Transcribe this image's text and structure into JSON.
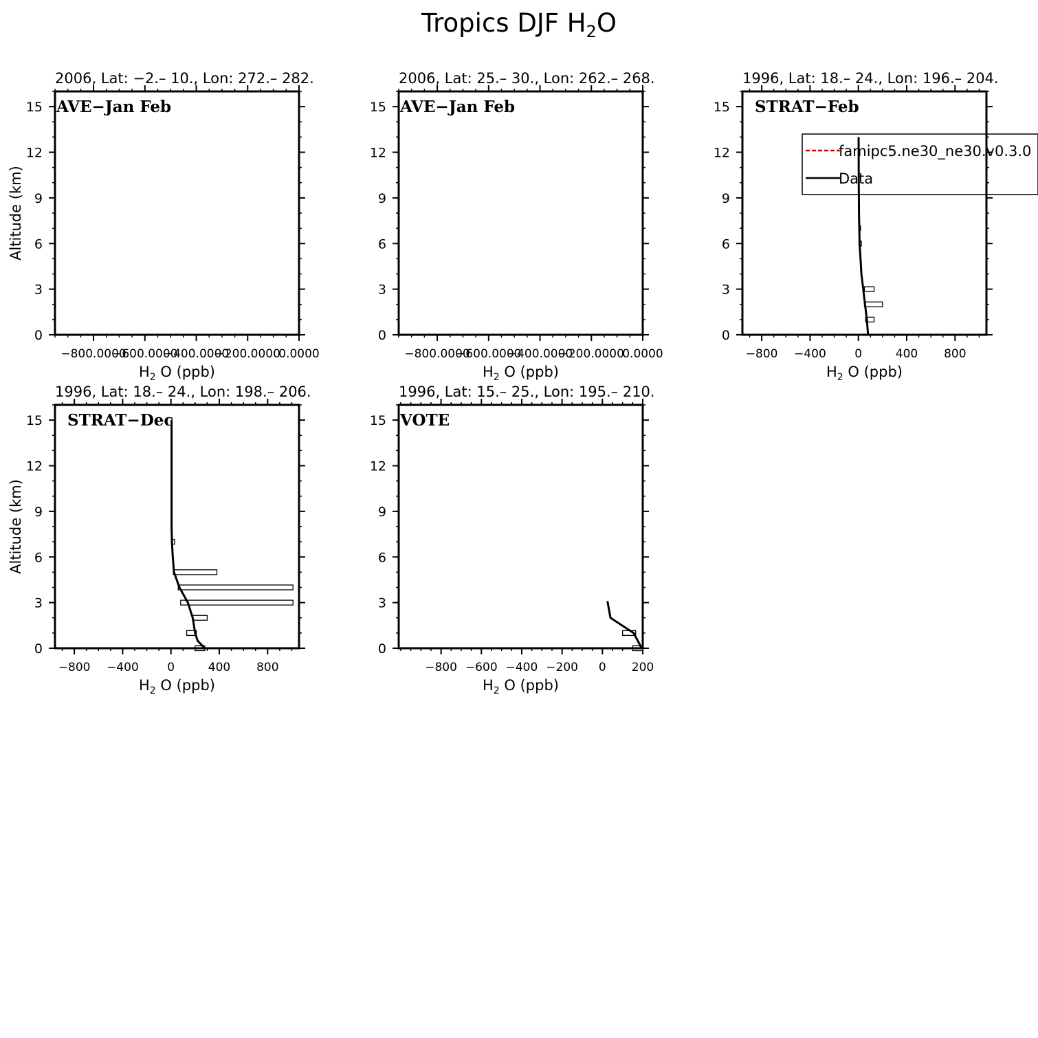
{
  "figure": {
    "title_main": "Tropics DJF H",
    "title_sub": "2",
    "title_end": "O"
  },
  "chart_data": [
    {
      "type": "line",
      "title": "2006, Lat: −2.– 10., Lon: 272.– 282.",
      "campaign": "AVE−Jan Feb",
      "xlabel_main": "H",
      "xlabel_sub": "2",
      "xlabel_end": "O (ppb)",
      "ylabel": "Altitude (km)",
      "xlim": [
        -950,
        0
      ],
      "ylim": [
        0,
        16
      ],
      "xticks": [
        -800,
        -600,
        -400,
        -200,
        0
      ],
      "xtick_labels": [
        "−800.0000",
        "−600.0000",
        "−400.0000",
        "−200.0000",
        "0.0000"
      ],
      "yticks": [
        0,
        3,
        6,
        9,
        12,
        15
      ],
      "ytick_labels": [
        "0",
        "3",
        "6",
        "9",
        "12",
        "15"
      ],
      "series": [],
      "bars": [],
      "legend": null
    },
    {
      "type": "line",
      "title": "2006, Lat: 25.– 30., Lon: 262.– 268.",
      "campaign": "AVE−Jan Feb",
      "xlabel_main": "H",
      "xlabel_sub": "2",
      "xlabel_end": "O (ppb)",
      "ylabel": "",
      "xlim": [
        -950,
        0
      ],
      "ylim": [
        0,
        16
      ],
      "xticks": [
        -800,
        -600,
        -400,
        -200,
        0
      ],
      "xtick_labels": [
        "−800.0000",
        "−600.0000",
        "−400.0000",
        "−200.0000",
        "0.0000"
      ],
      "yticks": [
        0,
        3,
        6,
        9,
        12,
        15
      ],
      "ytick_labels": [
        "0",
        "3",
        "6",
        "9",
        "12",
        "15"
      ],
      "series": [],
      "bars": [],
      "legend": null
    },
    {
      "type": "line",
      "title": "1996, Lat: 18.– 24., Lon: 196.– 204.",
      "campaign": "STRAT−Feb",
      "xlabel_main": "H",
      "xlabel_sub": "2",
      "xlabel_end": "O (ppb)",
      "ylabel": "",
      "xlim": [
        -960,
        1060
      ],
      "ylim": [
        0,
        16
      ],
      "xticks": [
        -800,
        -400,
        0,
        400,
        800
      ],
      "xtick_labels": [
        "−800",
        "−400",
        "0",
        "400",
        "800"
      ],
      "yticks": [
        0,
        3,
        6,
        9,
        12,
        15
      ],
      "ytick_labels": [
        "0",
        "3",
        "6",
        "9",
        "12",
        "15"
      ],
      "series": [
        {
          "name": "Data",
          "color": "#000000",
          "x": [
            80,
            70,
            55,
            40,
            25,
            10,
            5,
            3,
            2
          ],
          "y": [
            0,
            1,
            2,
            3,
            4,
            6,
            8,
            10,
            13
          ]
        }
      ],
      "bars": [
        {
          "y": 1,
          "x0": 60,
          "x1": 130
        },
        {
          "y": 2,
          "x0": 50,
          "x1": 200
        },
        {
          "y": 3,
          "x0": 50,
          "x1": 130
        },
        {
          "y": 6,
          "x0": 5,
          "x1": 25
        },
        {
          "y": 7,
          "x0": 3,
          "x1": 18
        }
      ],
      "legend": {
        "entries": [
          {
            "label": "famipc5.ne30_ne30.v0.3.0",
            "color": "#cc0000",
            "dash": true
          },
          {
            "label": "Data",
            "color": "#000000",
            "dash": false
          }
        ]
      }
    },
    {
      "type": "line",
      "title": "1996, Lat: 18.– 24., Lon: 198.– 206.",
      "campaign": "STRAT−Dec",
      "xlabel_main": "H",
      "xlabel_sub": "2",
      "xlabel_end": "O (ppb)",
      "ylabel": "Altitude (km)",
      "xlim": [
        -960,
        1060
      ],
      "ylim": [
        0,
        16
      ],
      "xticks": [
        -800,
        -400,
        0,
        400,
        800
      ],
      "xtick_labels": [
        "−800",
        "−400",
        "0",
        "400",
        "800"
      ],
      "yticks": [
        0,
        3,
        6,
        9,
        12,
        15
      ],
      "ytick_labels": [
        "0",
        "3",
        "6",
        "9",
        "12",
        "15"
      ],
      "series": [
        {
          "name": "Data",
          "color": "#000000",
          "x": [
            280,
            220,
            200,
            180,
            140,
            70,
            25,
            15,
            8,
            5,
            5,
            5,
            5
          ],
          "y": [
            0,
            0.5,
            1,
            2,
            3,
            4,
            5,
            6,
            7,
            8,
            10,
            12,
            15
          ]
        }
      ],
      "bars": [
        {
          "y": 0,
          "x0": 200,
          "x1": 280
        },
        {
          "y": 1,
          "x0": 130,
          "x1": 210
        },
        {
          "y": 2,
          "x0": 180,
          "x1": 300
        },
        {
          "y": 3,
          "x0": 80,
          "x1": 1010
        },
        {
          "y": 4,
          "x0": 60,
          "x1": 1010
        },
        {
          "y": 5,
          "x0": 20,
          "x1": 380
        },
        {
          "y": 7,
          "x0": 5,
          "x1": 30
        }
      ],
      "legend": null
    },
    {
      "type": "line",
      "title": "1996, Lat: 15.– 25., Lon: 195.– 210.",
      "campaign": "VOTE",
      "xlabel_main": "H",
      "xlabel_sub": "2",
      "xlabel_end": "O (ppb)",
      "ylabel": "",
      "xlim": [
        -1010,
        200
      ],
      "ylim": [
        0,
        16
      ],
      "xticks": [
        -800,
        -600,
        -400,
        -200,
        0,
        200
      ],
      "xtick_labels": [
        "−800",
        "−600",
        "−400",
        "−200",
        "0",
        "200"
      ],
      "yticks": [
        0,
        3,
        6,
        9,
        12,
        15
      ],
      "ytick_labels": [
        "0",
        "3",
        "6",
        "9",
        "12",
        "15"
      ],
      "series": [
        {
          "name": "Data",
          "color": "#000000",
          "x": [
            195,
            155,
            40,
            25
          ],
          "y": [
            0,
            1,
            2,
            3.1
          ]
        }
      ],
      "bars": [
        {
          "y": 1,
          "x0": 100,
          "x1": 165
        },
        {
          "y": 0,
          "x0": 150,
          "x1": 200
        }
      ],
      "legend": null
    }
  ]
}
